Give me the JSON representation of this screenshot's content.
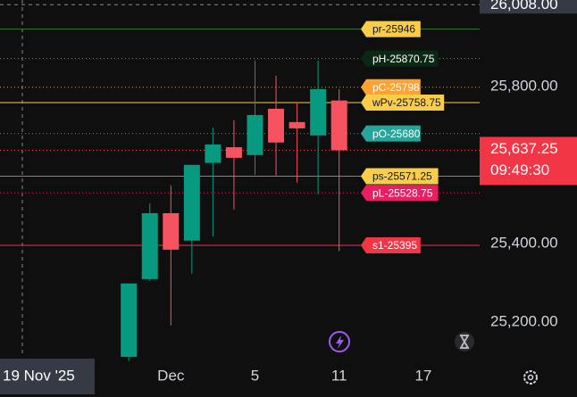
{
  "chart_data": {
    "type": "candlestick",
    "categories": [
      null,
      null,
      null,
      null,
      null,
      null,
      "Dec",
      null,
      null,
      null,
      "5",
      null,
      null,
      null,
      "11",
      null,
      null,
      null,
      "17"
    ],
    "open": [
      null,
      null,
      null,
      null,
      25111,
      25309,
      25477,
      25407,
      25605,
      25645,
      25625,
      25743,
      25709,
      25675,
      25764,
      null,
      null,
      null,
      null
    ],
    "high": [
      null,
      null,
      null,
      null,
      25298,
      25502,
      25548,
      25600,
      25695,
      25714,
      25866,
      25827,
      25759,
      25866,
      25793,
      null,
      null,
      null,
      null
    ],
    "low": [
      null,
      null,
      null,
      null,
      25100,
      25305,
      25191,
      25323,
      25418,
      25486,
      25575,
      25573,
      25555,
      25525,
      25380,
      null,
      null,
      null,
      null
    ],
    "close": [
      null,
      null,
      null,
      null,
      25298,
      25477,
      25384,
      25600,
      25652,
      25618,
      25727,
      25657,
      25693,
      25793,
      25637.25,
      null,
      null,
      null,
      null
    ],
    "up_color": "#089981",
    "down_color": "#f7525f",
    "ylim": [
      25111,
      26020
    ],
    "yticks": [
      {
        "value": 25200,
        "label": "25,200.00"
      },
      {
        "value": 25400,
        "label": "25,400.00"
      },
      {
        "value": 25800,
        "label": "25,800.00"
      }
    ],
    "levels": [
      {
        "label": "pr-25946",
        "value": 25946,
        "line_color": "#2e7d32",
        "dash": false,
        "tag_color": "#f9cd4a",
        "text_color": "#131722"
      },
      {
        "label": "pH-25870.75",
        "value": 25870.75,
        "line_color": "#4caf50",
        "dash": true,
        "tag_color": "#0b2814",
        "text_color": "#ffffff"
      },
      {
        "label": "pC-25798",
        "value": 25798,
        "line_color": "#ff9800",
        "dash": true,
        "tag_color": "#ffa133",
        "text_color": "#ffffff"
      },
      {
        "label": "wPv-25758.75",
        "value": 25758.75,
        "line_color": "#f9cd4a",
        "dash": false,
        "tag_color": "#f9cd4a",
        "text_color": "#131722"
      },
      {
        "label": "pO-25680",
        "value": 25680,
        "line_color": "#26a69a",
        "dash": true,
        "tag_color": "#26a69a",
        "text_color": "#ffffff"
      },
      {
        "label": "ps-25571.25",
        "value": 25571.25,
        "line_color": "#f7525f",
        "dash": false,
        "tag_color": "#f9cd4a",
        "text_color": "#131722"
      },
      {
        "label": "pL-25528.75",
        "value": 25528.75,
        "line_color": "#e91e63",
        "dash": true,
        "tag_color": "#e91e63",
        "text_color": "#ffffff"
      },
      {
        "label": "s1-25395",
        "value": 25395,
        "line_color": "#f23645",
        "dash": false,
        "tag_color": "#f23645",
        "text_color": "#ffffff"
      }
    ],
    "last": {
      "value": 25637.25,
      "label": "25,637.25",
      "time": "09:49:30"
    },
    "crosshair_y": {
      "value": 26008,
      "label": "26,008.00"
    },
    "crosshair_x_label": "19 Nov '25"
  }
}
